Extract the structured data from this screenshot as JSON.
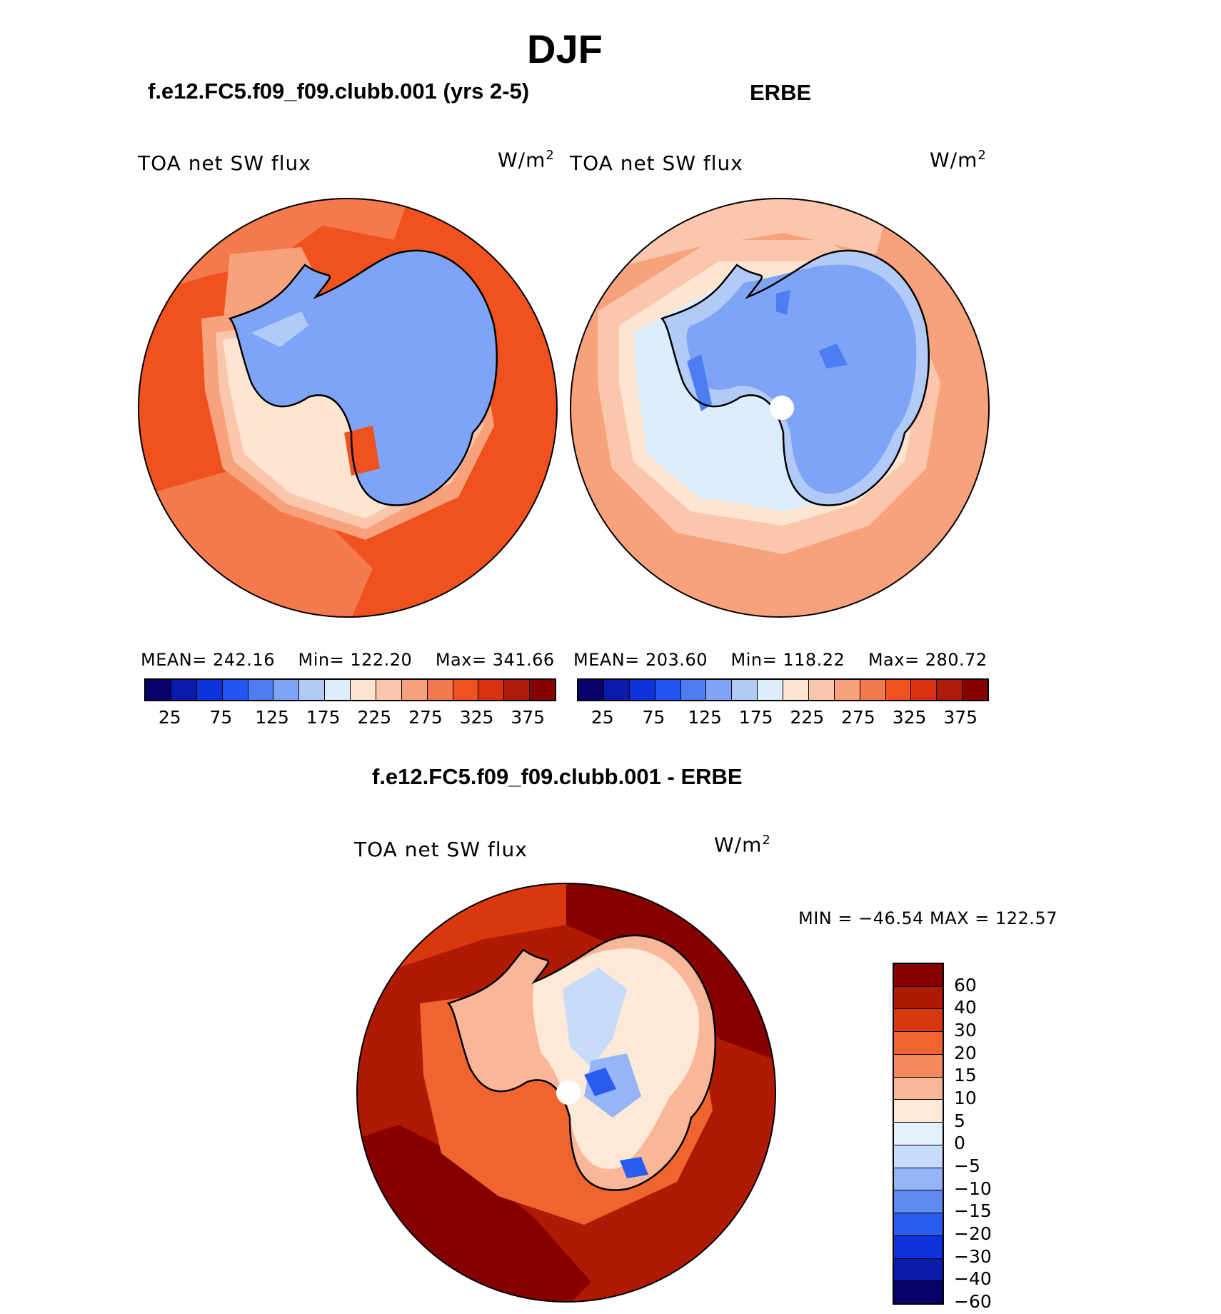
{
  "page": {
    "title": "DJF",
    "left_header": "f.e12.FC5.f09_f09.clubb.001 (yrs 2-5)",
    "right_header": "ERBE",
    "diff_header": "f.e12.FC5.f09_f09.clubb.001 - ERBE"
  },
  "colors": {
    "abs_scale": [
      "#08006b",
      "#0a1aab",
      "#0d33d9",
      "#2255f2",
      "#4d7df2",
      "#7fa4f5",
      "#b2caf7",
      "#dceefc",
      "#fde5d2",
      "#fbc7ac",
      "#f7a27c",
      "#f4794d",
      "#f0511f",
      "#d93210",
      "#b01a08",
      "#860000"
    ],
    "diff_scale": [
      "#08006b",
      "#0a1aab",
      "#0d33d9",
      "#2a5cf0",
      "#5e8bf2",
      "#95b5f6",
      "#c7dbfa",
      "#e2f0fc",
      "#fde9d8",
      "#f9b79a",
      "#f48a5c",
      "#f0642f",
      "#d9380e",
      "#b01a05",
      "#860000"
    ]
  },
  "chart_data": [
    {
      "type": "heatmap",
      "projection": "south-polar-stereographic",
      "title": "f.e12.FC5.f09_f09.clubb.001 (yrs 2-5)",
      "variable": "TOA net SW flux",
      "units": "W/m",
      "units_exp": "2",
      "stats": {
        "mean_label": "MEAN=",
        "mean": "242.16",
        "min_label": "Min=",
        "min": "122.20",
        "max_label": "Max=",
        "max": "341.66"
      },
      "contour_levels": [
        25,
        50,
        75,
        100,
        125,
        150,
        175,
        200,
        225,
        250,
        275,
        300,
        325,
        350,
        375
      ],
      "colorbar_ticks": [
        "25",
        "75",
        "125",
        "175",
        "225",
        "275",
        "325",
        "375"
      ]
    },
    {
      "type": "heatmap",
      "projection": "south-polar-stereographic",
      "title": "ERBE",
      "variable": "TOA net SW flux",
      "units": "W/m",
      "units_exp": "2",
      "stats": {
        "mean_label": "MEAN=",
        "mean": "203.60",
        "min_label": "Min=",
        "min": "118.22",
        "max_label": "Max=",
        "max": "280.72"
      },
      "contour_levels": [
        25,
        50,
        75,
        100,
        125,
        150,
        175,
        200,
        225,
        250,
        275,
        300,
        325,
        350,
        375
      ],
      "colorbar_ticks": [
        "25",
        "75",
        "125",
        "175",
        "225",
        "275",
        "325",
        "375"
      ]
    },
    {
      "type": "heatmap",
      "projection": "south-polar-stereographic",
      "title": "f.e12.FC5.f09_f09.clubb.001 - ERBE",
      "variable": "TOA net SW flux",
      "units": "W/m",
      "units_exp": "2",
      "stats": {
        "text": "MIN = −46.54 MAX = 122.57",
        "min": -46.54,
        "max": 122.57
      },
      "contour_levels": [
        -60,
        -40,
        -30,
        -20,
        -15,
        -10,
        -5,
        0,
        5,
        10,
        15,
        20,
        30,
        40,
        60
      ],
      "colorbar_ticks": [
        "60",
        "40",
        "30",
        "20",
        "15",
        "10",
        "5",
        "0",
        "−5",
        "−10",
        "−15",
        "−20",
        "−30",
        "−40",
        "−60"
      ]
    }
  ]
}
